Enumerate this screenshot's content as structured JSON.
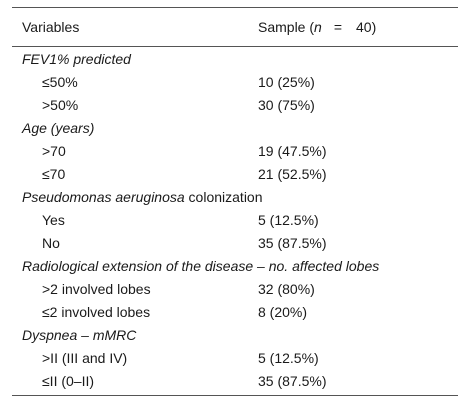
{
  "header": {
    "col1": "Variables",
    "col2_prefix": "Sample (",
    "col2_n": "n",
    "col2_eq": "=",
    "col2_value": "40)"
  },
  "sections": [
    {
      "title": "FEV1% predicted",
      "rows": [
        {
          "label": "≤50%",
          "value": "10 (25%)"
        },
        {
          "label": ">50%",
          "value": "30 (75%)"
        }
      ]
    },
    {
      "title": "Age (years)",
      "rows": [
        {
          "label": ">70",
          "value": "19 (47.5%)"
        },
        {
          "label": "≤70",
          "value": "21 (52.5%)"
        }
      ]
    },
    {
      "title": "Pseudomonas aeruginosa",
      "title_suffix": " colonization",
      "rows": [
        {
          "label": "Yes",
          "value": "5 (12.5%)"
        },
        {
          "label": "No",
          "value": "35 (87.5%)"
        }
      ]
    },
    {
      "title": "Radiological extension of the disease – no. affected lobes",
      "rows": [
        {
          "label": ">2 involved lobes",
          "value": "32 (80%)"
        },
        {
          "label": "≤2 involved lobes",
          "value": "8 (20%)"
        }
      ]
    },
    {
      "title": "Dyspnea – mMRC",
      "rows": [
        {
          "label": ">II (III and IV)",
          "value": "5 (12.5%)"
        },
        {
          "label": "≤II (0–II)",
          "value": "35 (87.5%)"
        }
      ]
    }
  ]
}
